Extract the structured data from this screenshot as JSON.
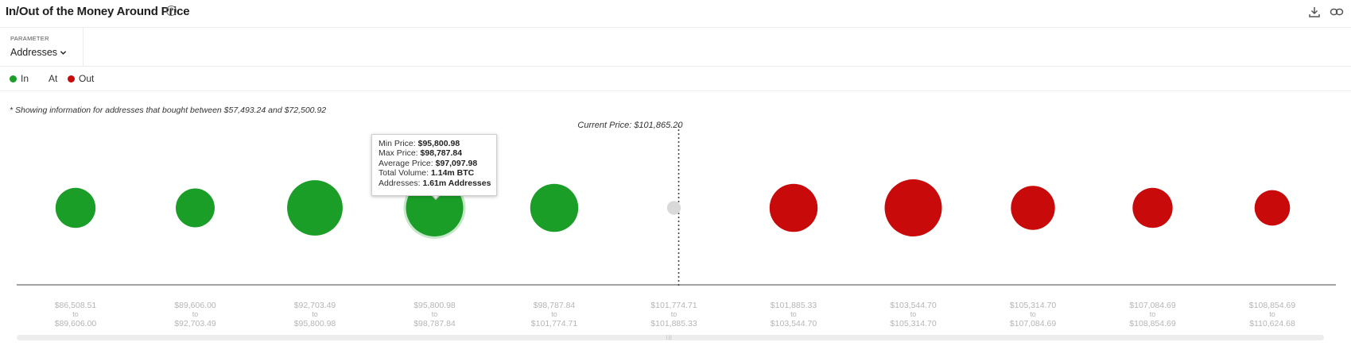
{
  "header": {
    "title": "In/Out of the Money Around Price",
    "help_glyph": "?",
    "icons": [
      "download-icon",
      "link-icon"
    ]
  },
  "parameter": {
    "label": "PARAMETER",
    "value": "Addresses"
  },
  "legend": {
    "items": [
      {
        "label": "In",
        "color": "#1a9e28"
      },
      {
        "label": "At",
        "color": ""
      },
      {
        "label": "Out",
        "color": "#c80a0a"
      }
    ]
  },
  "note": "* Showing information for addresses that bought between $57,493.24 and $72,500.92",
  "tooltip": {
    "rows": [
      {
        "label": "Min Price:",
        "value": "$95,800.98"
      },
      {
        "label": "Max Price:",
        "value": "$98,787.84"
      },
      {
        "label": "Average Price:",
        "value": "$97,097.98"
      },
      {
        "label": "Total Volume:",
        "value": "1.14m BTC"
      },
      {
        "label": "Addresses:",
        "value": "1.61m Addresses"
      }
    ]
  },
  "chart_data": {
    "type": "scatter",
    "title": "In/Out of the Money Around Price",
    "current_price_label": "Current Price: $101,865.20",
    "current_price_index": 5,
    "colors": {
      "in": "#1a9e28",
      "at": "#d9d9d9",
      "out": "#c80a0a"
    },
    "buckets": [
      {
        "from": "$86,508.51",
        "to": "$89,606.00",
        "status": "in",
        "relative_size": 0.7
      },
      {
        "from": "$89,606.00",
        "to": "$92,703.49",
        "status": "in",
        "relative_size": 0.68
      },
      {
        "from": "$92,703.49",
        "to": "$95,800.98",
        "status": "in",
        "relative_size": 0.97
      },
      {
        "from": "$95,800.98",
        "to": "$98,787.84",
        "status": "in",
        "relative_size": 1.0,
        "highlighted": true
      },
      {
        "from": "$98,787.84",
        "to": "$101,774.71",
        "status": "in",
        "relative_size": 0.84
      },
      {
        "from": "$101,774.71",
        "to": "$101,885.33",
        "status": "at",
        "relative_size": 0.24
      },
      {
        "from": "$101,885.33",
        "to": "$103,544.70",
        "status": "out",
        "relative_size": 0.84
      },
      {
        "from": "$103,544.70",
        "to": "$105,314.70",
        "status": "out",
        "relative_size": 1.0
      },
      {
        "from": "$105,314.70",
        "to": "$107,084.69",
        "status": "out",
        "relative_size": 0.77
      },
      {
        "from": "$107,084.69",
        "to": "$108,854.69",
        "status": "out",
        "relative_size": 0.7
      },
      {
        "from": "$108,854.69",
        "to": "$110,624.68",
        "status": "out",
        "relative_size": 0.62
      }
    ],
    "range_connector": "to"
  }
}
